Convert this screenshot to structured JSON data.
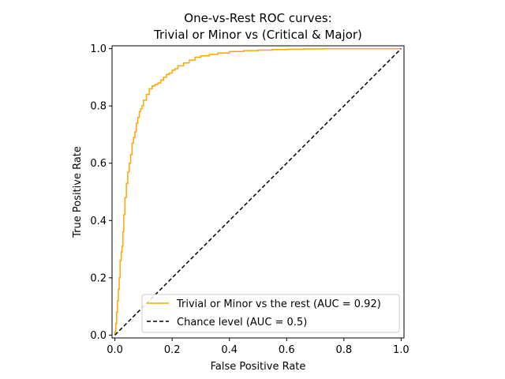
{
  "chart_data": {
    "type": "line",
    "title": [
      "One-vs-Rest ROC curves:",
      "Trivial or Minor vs (Critical & Major)"
    ],
    "xlabel": "False Positive Rate",
    "ylabel": "True Positive Rate",
    "xlim": [
      -0.01,
      1.01
    ],
    "ylim": [
      -0.01,
      1.01
    ],
    "xticks": [
      0.0,
      0.2,
      0.4,
      0.6,
      0.8,
      1.0
    ],
    "yticks": [
      0.0,
      0.2,
      0.4,
      0.6,
      0.8,
      1.0
    ],
    "xtick_labels": [
      "0.0",
      "0.2",
      "0.4",
      "0.6",
      "0.8",
      "1.0"
    ],
    "ytick_labels": [
      "0.0",
      "0.2",
      "0.4",
      "0.6",
      "0.8",
      "1.0"
    ],
    "grid": false,
    "legend_position": "lower-right",
    "series": [
      {
        "name": "Trivial or Minor vs the rest (AUC = 0.92)",
        "color": "#ffa500",
        "style": "solid",
        "x": [
          0.0,
          0.0,
          0.003,
          0.003,
          0.006,
          0.006,
          0.009,
          0.009,
          0.012,
          0.012,
          0.015,
          0.015,
          0.018,
          0.018,
          0.022,
          0.022,
          0.025,
          0.025,
          0.028,
          0.028,
          0.031,
          0.031,
          0.035,
          0.035,
          0.04,
          0.04,
          0.045,
          0.045,
          0.05,
          0.05,
          0.055,
          0.055,
          0.06,
          0.06,
          0.065,
          0.065,
          0.07,
          0.07,
          0.075,
          0.075,
          0.08,
          0.08,
          0.085,
          0.085,
          0.09,
          0.09,
          0.095,
          0.095,
          0.1,
          0.1,
          0.11,
          0.11,
          0.12,
          0.12,
          0.13,
          0.13,
          0.14,
          0.14,
          0.15,
          0.15,
          0.16,
          0.16,
          0.17,
          0.17,
          0.18,
          0.18,
          0.19,
          0.19,
          0.2,
          0.2,
          0.21,
          0.21,
          0.22,
          0.22,
          0.24,
          0.24,
          0.26,
          0.26,
          0.28,
          0.28,
          0.3,
          0.3,
          0.33,
          0.33,
          0.36,
          0.36,
          0.4,
          0.4,
          0.45,
          0.45,
          0.5,
          0.5,
          0.55,
          0.55,
          0.6,
          0.6,
          0.66,
          0.66,
          0.73,
          0.73,
          0.8,
          0.8,
          0.87,
          0.87,
          0.93,
          0.93,
          1.0
        ],
        "y": [
          0.0,
          0.01,
          0.01,
          0.04,
          0.04,
          0.08,
          0.08,
          0.12,
          0.12,
          0.16,
          0.16,
          0.2,
          0.2,
          0.26,
          0.26,
          0.29,
          0.29,
          0.31,
          0.31,
          0.36,
          0.36,
          0.42,
          0.42,
          0.48,
          0.48,
          0.53,
          0.53,
          0.57,
          0.57,
          0.6,
          0.6,
          0.63,
          0.63,
          0.67,
          0.67,
          0.69,
          0.69,
          0.71,
          0.71,
          0.74,
          0.74,
          0.76,
          0.76,
          0.78,
          0.78,
          0.79,
          0.79,
          0.8,
          0.8,
          0.82,
          0.82,
          0.84,
          0.84,
          0.86,
          0.86,
          0.87,
          0.87,
          0.875,
          0.875,
          0.88,
          0.88,
          0.89,
          0.89,
          0.9,
          0.9,
          0.91,
          0.91,
          0.915,
          0.915,
          0.925,
          0.925,
          0.93,
          0.93,
          0.94,
          0.94,
          0.95,
          0.95,
          0.96,
          0.96,
          0.97,
          0.97,
          0.975,
          0.975,
          0.98,
          0.98,
          0.985,
          0.985,
          0.99,
          0.99,
          0.993,
          0.993,
          0.995,
          0.995,
          0.997,
          0.997,
          0.998,
          0.998,
          0.999,
          0.999,
          1.0,
          1.0,
          1.0,
          1.0,
          1.0,
          1.0,
          1.0,
          1.0
        ]
      },
      {
        "name": "Chance level (AUC = 0.5)",
        "color": "#000000",
        "style": "dashed",
        "x": [
          0.0,
          1.0
        ],
        "y": [
          0.0,
          1.0
        ]
      }
    ]
  }
}
